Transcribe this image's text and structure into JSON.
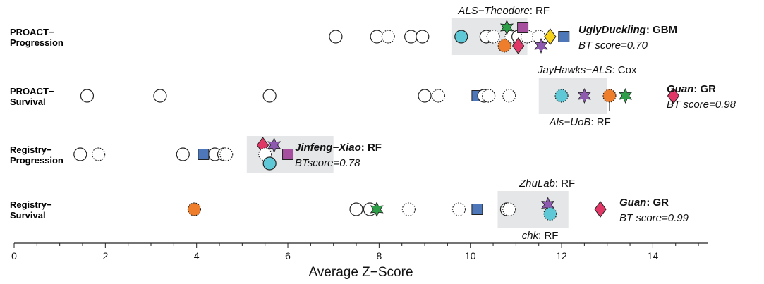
{
  "chart_data": {
    "type": "scatter",
    "xlabel": "Average Z−Score",
    "xlim": [
      0,
      15.2
    ],
    "x_ticks": [
      0,
      2,
      4,
      6,
      8,
      10,
      12,
      14
    ],
    "y_categories": [
      "PROACT−\nProgression",
      "PROACT−\nSurvival",
      "Registry−\nProgression",
      "Registry−\nSurvival"
    ],
    "colors": {
      "purple": "#8e5ab0",
      "green": "#2f9e48",
      "magenta": "#a64f9e",
      "yellow": "#f6d219",
      "orange": "#ee7d2c",
      "blue": "#4d77b9",
      "teal": "#5ec8d6",
      "red": "#e03766",
      "band": "#e4e6e8"
    },
    "highlight_ranges": [
      {
        "row": 0,
        "x": [
          9.6,
          11.25
        ]
      },
      {
        "row": 1,
        "x": [
          11.5,
          13.0
        ]
      },
      {
        "row": 2,
        "x": [
          5.1,
          7.0
        ]
      },
      {
        "row": 3,
        "x": [
          10.6,
          12.15
        ]
      }
    ],
    "points": [
      {
        "row": 0,
        "x": 7.05,
        "shape": "circle",
        "fill": "white",
        "stroke": "solid"
      },
      {
        "row": 0,
        "x": 7.95,
        "shape": "circle",
        "fill": "white",
        "stroke": "solid"
      },
      {
        "row": 0,
        "x": 8.2,
        "shape": "circle",
        "fill": "white",
        "stroke": "dotted"
      },
      {
        "row": 0,
        "x": 8.7,
        "shape": "circle",
        "fill": "white",
        "stroke": "solid"
      },
      {
        "row": 0,
        "x": 8.95,
        "shape": "circle",
        "fill": "white",
        "stroke": "solid"
      },
      {
        "row": 0,
        "x": 9.8,
        "shape": "circle",
        "fill": "teal",
        "stroke": "solid"
      },
      {
        "row": 0,
        "x": 10.35,
        "shape": "circle",
        "fill": "white",
        "stroke": "solid"
      },
      {
        "row": 0,
        "x": 10.5,
        "shape": "circle",
        "fill": "white",
        "stroke": "dotted"
      },
      {
        "row": 0,
        "x": 10.9,
        "shape": "circle",
        "fill": "white",
        "stroke": "dotted"
      },
      {
        "row": 0,
        "x": 11.05,
        "shape": "circle",
        "fill": "white",
        "stroke": "solid"
      },
      {
        "row": 0,
        "x": 11.25,
        "shape": "circle",
        "fill": "white",
        "stroke": "dotted"
      },
      {
        "row": 0,
        "x": 11.5,
        "shape": "circle",
        "fill": "white",
        "stroke": "dotted"
      },
      {
        "row": 0,
        "x": 10.8,
        "dy": -1,
        "shape": "star",
        "fill": "green"
      },
      {
        "row": 0,
        "x": 11.15,
        "dy": -1,
        "shape": "square",
        "fill": "magenta"
      },
      {
        "row": 0,
        "x": 11.75,
        "dy": 0,
        "shape": "diamond",
        "fill": "yellow"
      },
      {
        "row": 0,
        "x": 10.75,
        "dy": 1,
        "shape": "circle",
        "fill": "orange",
        "stroke": "dotted"
      },
      {
        "row": 0,
        "x": 11.05,
        "dy": 1,
        "shape": "diamond",
        "fill": "red"
      },
      {
        "row": 0,
        "x": 11.55,
        "dy": 1,
        "shape": "star",
        "fill": "purple"
      },
      {
        "row": 0,
        "x": 12.05,
        "dy": 0,
        "shape": "square",
        "fill": "blue"
      },
      {
        "row": 1,
        "x": 1.6,
        "shape": "circle",
        "fill": "white",
        "stroke": "solid"
      },
      {
        "row": 1,
        "x": 3.2,
        "shape": "circle",
        "fill": "white",
        "stroke": "solid"
      },
      {
        "row": 1,
        "x": 5.6,
        "shape": "circle",
        "fill": "white",
        "stroke": "solid"
      },
      {
        "row": 1,
        "x": 9.0,
        "shape": "circle",
        "fill": "white",
        "stroke": "solid"
      },
      {
        "row": 1,
        "x": 9.3,
        "shape": "circle",
        "fill": "white",
        "stroke": "dotted"
      },
      {
        "row": 1,
        "x": 10.15,
        "shape": "square",
        "fill": "blue"
      },
      {
        "row": 1,
        "x": 10.3,
        "shape": "circle",
        "fill": "white",
        "stroke": "solid"
      },
      {
        "row": 1,
        "x": 10.4,
        "shape": "circle",
        "fill": "white",
        "stroke": "dotted"
      },
      {
        "row": 1,
        "x": 10.85,
        "shape": "circle",
        "fill": "white",
        "stroke": "dotted"
      },
      {
        "row": 1,
        "x": 12.0,
        "shape": "circle",
        "fill": "teal",
        "stroke": "dotted"
      },
      {
        "row": 1,
        "x": 12.5,
        "shape": "star",
        "fill": "purple"
      },
      {
        "row": 1,
        "x": 13.05,
        "shape": "circle",
        "fill": "orange",
        "stroke": "dotted"
      },
      {
        "row": 1,
        "x": 13.4,
        "shape": "star",
        "fill": "green"
      },
      {
        "row": 1,
        "x": 14.45,
        "shape": "diamond",
        "fill": "red"
      },
      {
        "row": 2,
        "x": 1.45,
        "shape": "circle",
        "fill": "white",
        "stroke": "solid"
      },
      {
        "row": 2,
        "x": 1.85,
        "shape": "circle",
        "fill": "white",
        "stroke": "dotted"
      },
      {
        "row": 2,
        "x": 3.7,
        "shape": "circle",
        "fill": "white",
        "stroke": "solid"
      },
      {
        "row": 2,
        "x": 4.4,
        "shape": "circle",
        "fill": "white",
        "stroke": "solid"
      },
      {
        "row": 2,
        "x": 4.6,
        "shape": "circle",
        "fill": "white",
        "stroke": "solid"
      },
      {
        "row": 2,
        "x": 4.65,
        "shape": "circle",
        "fill": "white",
        "stroke": "dotted"
      },
      {
        "row": 2,
        "x": 4.15,
        "shape": "square",
        "fill": "blue"
      },
      {
        "row": 2,
        "x": 5.45,
        "dy": -1,
        "shape": "diamond",
        "fill": "red"
      },
      {
        "row": 2,
        "x": 5.7,
        "dy": -1,
        "shape": "star",
        "fill": "purple"
      },
      {
        "row": 2,
        "x": 5.5,
        "dy": 0,
        "shape": "circle",
        "fill": "white",
        "stroke": "dotted"
      },
      {
        "row": 2,
        "x": 6.0,
        "dy": 0,
        "shape": "square",
        "fill": "magenta"
      },
      {
        "row": 2,
        "x": 5.6,
        "dy": 1,
        "shape": "circle",
        "fill": "teal",
        "stroke": "solid"
      },
      {
        "row": 3,
        "x": 3.95,
        "shape": "circle",
        "fill": "orange",
        "stroke": "dotted"
      },
      {
        "row": 3,
        "x": 7.5,
        "shape": "circle",
        "fill": "white",
        "stroke": "solid"
      },
      {
        "row": 3,
        "x": 7.8,
        "shape": "circle",
        "fill": "white",
        "stroke": "solid"
      },
      {
        "row": 3,
        "x": 7.95,
        "shape": "star",
        "fill": "green"
      },
      {
        "row": 3,
        "x": 8.65,
        "shape": "circle",
        "fill": "white",
        "stroke": "dotted"
      },
      {
        "row": 3,
        "x": 9.75,
        "shape": "circle",
        "fill": "white",
        "stroke": "dotted"
      },
      {
        "row": 3,
        "x": 10.15,
        "shape": "square",
        "fill": "blue"
      },
      {
        "row": 3,
        "x": 10.8,
        "shape": "circle",
        "fill": "white",
        "stroke": "solid"
      },
      {
        "row": 3,
        "x": 10.85,
        "shape": "circle",
        "fill": "white",
        "stroke": "dotted"
      },
      {
        "row": 3,
        "x": 11.7,
        "dy": -0.5,
        "shape": "star",
        "fill": "purple"
      },
      {
        "row": 3,
        "x": 11.75,
        "dy": 0.5,
        "shape": "circle",
        "fill": "teal",
        "stroke": "dotted"
      },
      {
        "row": 3,
        "x": 12.85,
        "shape": "diamond",
        "fill": "red"
      }
    ],
    "annotations": [
      {
        "row": 0,
        "lines": [
          {
            "pos": "above-band",
            "parts": [
              {
                "t": "ALS−Theodore",
                "i": true
              },
              {
                "t": ": RF"
              }
            ]
          },
          {
            "pos": "right-1",
            "parts": [
              {
                "t": "UglyDuckling",
                "i": true,
                "b": true
              },
              {
                "t": ": GBM",
                "b": true
              }
            ]
          },
          {
            "pos": "right-2",
            "parts": [
              {
                "t": "BT score=0.70",
                "i": true
              }
            ]
          }
        ]
      },
      {
        "row": 1,
        "lines": [
          {
            "pos": "above-band",
            "parts": [
              {
                "t": "JayHawks−ALS",
                "i": true
              },
              {
                "t": ": Cox"
              }
            ]
          },
          {
            "pos": "below-band",
            "parts": [
              {
                "t": "Als−UoB",
                "i": true
              },
              {
                "t": ": RF"
              }
            ]
          },
          {
            "pos": "right-1",
            "parts": [
              {
                "t": "Guan",
                "i": true,
                "b": true
              },
              {
                "t": ": GR",
                "b": true
              }
            ]
          },
          {
            "pos": "right-2",
            "parts": [
              {
                "t": "BT score=0.98",
                "i": true
              }
            ]
          }
        ]
      },
      {
        "row": 2,
        "lines": [
          {
            "pos": "right-1",
            "parts": [
              {
                "t": "Jinfeng−Xiao",
                "i": true,
                "b": true
              },
              {
                "t": ": RF",
                "b": true
              }
            ]
          },
          {
            "pos": "right-2",
            "parts": [
              {
                "t": "BTscore=0.78",
                "i": true
              }
            ]
          }
        ]
      },
      {
        "row": 3,
        "lines": [
          {
            "pos": "above-band",
            "parts": [
              {
                "t": "ZhuLab",
                "i": true
              },
              {
                "t": ": RF"
              }
            ]
          },
          {
            "pos": "below-band",
            "parts": [
              {
                "t": "chk",
                "i": true
              },
              {
                "t": ": RF"
              }
            ]
          },
          {
            "pos": "right-1",
            "parts": [
              {
                "t": "Guan",
                "i": true,
                "b": true
              },
              {
                "t": ": GR",
                "b": true
              }
            ]
          },
          {
            "pos": "right-2",
            "parts": [
              {
                "t": "BT score=0.99",
                "i": true
              }
            ]
          }
        ]
      }
    ]
  }
}
